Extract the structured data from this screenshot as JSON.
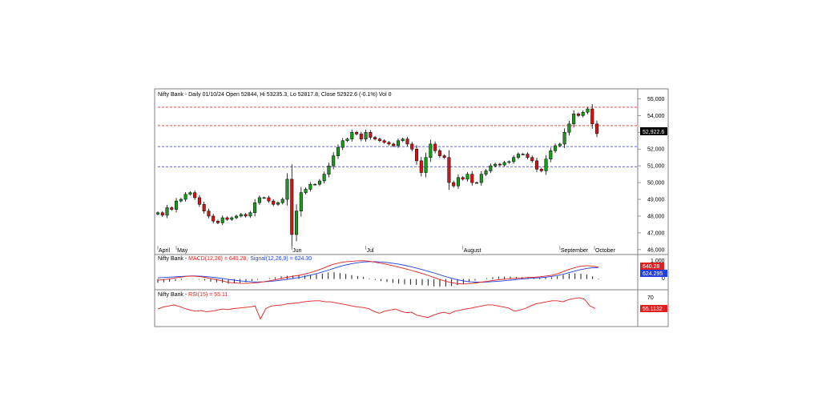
{
  "price_panel": {
    "title": "Nifty Bank - Daily 01/10/24 Open 52844, Hi 53235.3, Lo 52817.8, Close 52922.6 (-0.1%) Vol 0",
    "last_price_tag": "52,922.6",
    "y_tick_labels": [
      "55,000",
      "54,000",
      "53,000",
      "52,000",
      "51,000",
      "50,000",
      "49,000",
      "48,000",
      "47,000",
      "46,000"
    ],
    "month_labels": [
      "April",
      "May",
      "Jun",
      "Jul",
      "August",
      "September",
      "October"
    ]
  },
  "macd_panel": {
    "title_prefix": "Nifty Bank - ",
    "macd_label": "MACD(12,26) = 640.28,",
    "signal_label": "Signal(12,26,9) = 624.30",
    "tick_labels": [
      "1,000",
      "0"
    ],
    "macd_tag": "640.28",
    "signal_tag": "624.295"
  },
  "rsi_panel": {
    "title_prefix": "Nifty Bank - ",
    "rsi_label": "RSI(15) = 55.11",
    "tick_labels": [
      "70"
    ],
    "rsi_tag": "55.1132"
  },
  "colors": {
    "bull": "#1a9a1a",
    "bear": "#e01010",
    "resistance": "#e03030",
    "support": "#3030d0",
    "macd": "#e02020",
    "signal": "#2040e0",
    "tag_bg": "#000000"
  },
  "chart_data": [
    {
      "type": "candlestick",
      "title": "Nifty Bank - Daily 01/10/24 Open 52844, Hi 53235.3, Lo 52817.8, Close 52922.6 (-0.1%) Vol 0",
      "ylim": [
        45800,
        55500
      ],
      "x_labels": [
        "April",
        "May",
        "Jun",
        "Jul",
        "August",
        "September",
        "October"
      ],
      "levels": {
        "resistance": [
          54500,
          53400
        ],
        "support": [
          52150,
          50950
        ]
      },
      "close_path": [
        48200,
        48050,
        48500,
        48400,
        48900,
        49000,
        49300,
        49400,
        49100,
        48700,
        48300,
        48000,
        47700,
        47600,
        47900,
        47800,
        47900,
        48000,
        48100,
        48000,
        48200,
        48800,
        49100,
        49100,
        48900,
        48700,
        48800,
        49000,
        50200,
        46900,
        48300,
        49400,
        49600,
        49900,
        49900,
        50100,
        50500,
        51000,
        51600,
        52100,
        52500,
        52600,
        53000,
        52900,
        52600,
        53000,
        52700,
        52600,
        52500,
        52400,
        52300,
        52200,
        52500,
        52600,
        52300,
        52000,
        51300,
        50600,
        51500,
        52300,
        51900,
        51600,
        51500,
        50000,
        49800,
        50300,
        50200,
        50500,
        50000,
        50000,
        50500,
        50700,
        51000,
        51100,
        51050,
        51200,
        51250,
        51500,
        51700,
        51700,
        51500,
        51300,
        50800,
        50700,
        51400,
        51900,
        52200,
        52300,
        53000,
        53500,
        54100,
        54000,
        54200,
        54400,
        53500,
        52922.6
      ]
    },
    {
      "type": "line",
      "title": "MACD(12,26) = 640.28, Signal(12,26,9) = 624.30",
      "series": [
        {
          "name": "MACD(12,26)",
          "values": [
            -70,
            -30,
            10,
            60,
            110,
            150,
            160,
            140,
            90,
            20,
            -40,
            -100,
            -180,
            -210,
            -230,
            -240,
            -220,
            -190,
            -150,
            -100,
            -40,
            30,
            90,
            150,
            200,
            260,
            350,
            450,
            560,
            700,
            810,
            880,
            930,
            960,
            980,
            990,
            960,
            910,
            850,
            790,
            720,
            640,
            560,
            480,
            390,
            300,
            200,
            80,
            -30,
            -120,
            -200,
            -250,
            -270,
            -260,
            -220,
            -170,
            -130,
            -80,
            -40,
            -10,
            20,
            40,
            60,
            80,
            90,
            120,
            160,
            200,
            280,
            400,
            520,
            620,
            690,
            720,
            700,
            640
          ]
        },
        {
          "name": "Signal(12,26,9)",
          "values": [
            60,
            80,
            100,
            120,
            140,
            160,
            170,
            160,
            140,
            110,
            70,
            30,
            -20,
            -60,
            -100,
            -130,
            -150,
            -160,
            -150,
            -130,
            -100,
            -60,
            -20,
            30,
            80,
            140,
            210,
            290,
            380,
            480,
            580,
            680,
            760,
            830,
            880,
            920,
            940,
            940,
            920,
            890,
            850,
            800,
            740,
            670,
            590,
            510,
            420,
            330,
            230,
            130,
            40,
            -40,
            -100,
            -150,
            -170,
            -170,
            -160,
            -140,
            -120,
            -90,
            -60,
            -30,
            0,
            30,
            50,
            70,
            100,
            140,
            190,
            260,
            340,
            430,
            510,
            570,
            610,
            624
          ]
        }
      ],
      "ylim": [
        -450,
        1150
      ],
      "ticks": [
        1000,
        0
      ]
    },
    {
      "type": "line",
      "title": "RSI(15) = 55.11",
      "series": [
        {
          "name": "RSI(15)",
          "values": [
            54,
            58,
            60,
            62,
            59,
            55,
            52,
            50,
            51,
            49,
            50,
            52,
            54,
            53,
            55,
            56,
            57,
            58,
            60,
            35,
            55,
            60,
            61,
            62,
            64,
            65,
            66,
            68,
            69,
            70,
            70,
            68,
            68,
            66,
            64,
            62,
            60,
            58,
            57,
            55,
            50,
            46,
            50,
            52,
            54,
            50,
            47,
            48,
            42,
            40,
            38,
            42,
            46,
            48,
            45,
            50,
            52,
            54,
            56,
            58,
            60,
            62,
            62,
            60,
            58,
            56,
            50,
            52,
            55,
            60,
            64,
            66,
            68,
            70,
            70,
            68,
            72,
            74,
            76,
            73,
            60,
            55
          ]
        }
      ],
      "ylim": [
        25,
        85
      ],
      "ticks": [
        70
      ]
    }
  ]
}
